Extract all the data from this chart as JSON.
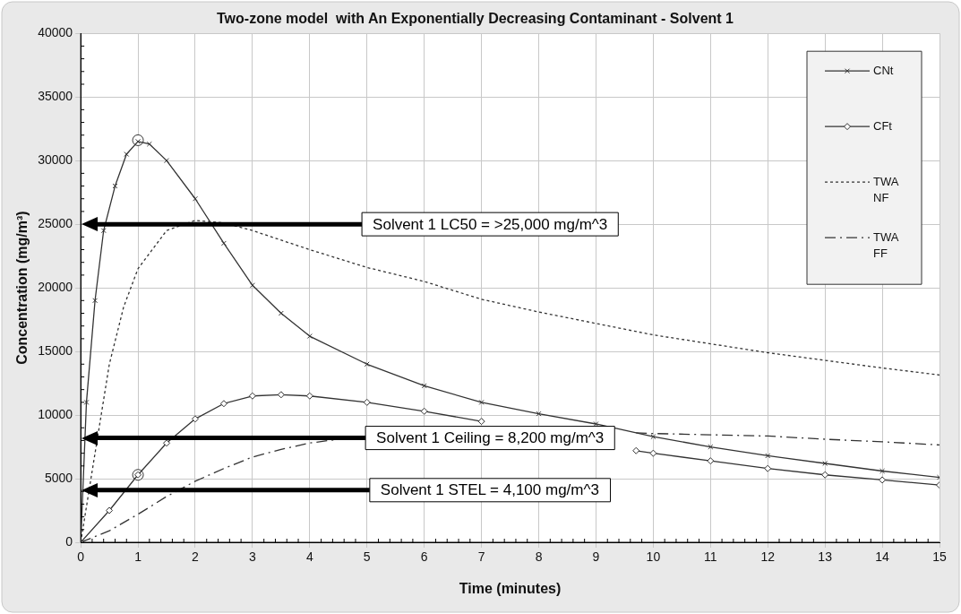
{
  "chart_data": {
    "type": "line",
    "title": "Two-zone model  with An Exponentially Decreasing Contaminant - Solvent 1",
    "xlabel": "Time (minutes)",
    "ylabel": "Concentration (mg/m³)",
    "xlim": [
      0,
      15
    ],
    "xticks": [
      0,
      1,
      2,
      3,
      4,
      5,
      6,
      7,
      8,
      9,
      10,
      11,
      12,
      13,
      14,
      15
    ],
    "ylim": [
      0,
      40000
    ],
    "yticks": [
      0,
      5000,
      10000,
      15000,
      20000,
      25000,
      30000,
      35000,
      40000
    ],
    "grid": true,
    "legend": "top right",
    "series": [
      {
        "name": "CNt",
        "color": "#333333",
        "marker": "cross",
        "line_style": "solid",
        "x": [
          0,
          0.1,
          0.25,
          0.4,
          0.6,
          0.8,
          1,
          1.2,
          1.5,
          2,
          2.5,
          3,
          3.5,
          4,
          5,
          6,
          7,
          8,
          9,
          10,
          11,
          12,
          13,
          14,
          15
        ],
        "values": [
          0,
          11000,
          19000,
          24500,
          28000,
          30500,
          31500,
          31300,
          30000,
          27000,
          23500,
          20200,
          18000,
          16200,
          14000,
          12300,
          11000,
          10100,
          9300,
          8300,
          7500,
          6800,
          6200,
          5600,
          5100
        ]
      },
      {
        "name": "CFt",
        "color": "#333333",
        "marker": "diamond",
        "line_style": "solid",
        "x": [
          0,
          0.5,
          1,
          1.5,
          2,
          2.5,
          3,
          3.5,
          4,
          5,
          6,
          7,
          8,
          9,
          9.7,
          10,
          11,
          12,
          13,
          14,
          15
        ],
        "values": [
          0,
          2500,
          5300,
          7800,
          9700,
          10900,
          11500,
          11600,
          11500,
          11000,
          10300,
          9500,
          null,
          null,
          7200,
          7000,
          6400,
          5800,
          5300,
          4900,
          4500
        ]
      },
      {
        "name": "TWA NF",
        "color": "#333333",
        "marker": "none",
        "line_style": "dotted",
        "x": [
          0,
          0.25,
          0.5,
          0.75,
          1,
          1.5,
          2,
          2.5,
          3,
          4,
          5,
          6,
          7,
          8,
          9,
          10,
          11,
          12,
          13,
          14,
          15
        ],
        "values": [
          0,
          7000,
          14000,
          18500,
          21500,
          24500,
          25300,
          25100,
          24500,
          23000,
          21600,
          20500,
          19100,
          18100,
          17200,
          16300,
          15600,
          14900,
          14300,
          13700,
          13150
        ]
      },
      {
        "name": "TWA FF",
        "color": "#333333",
        "marker": "none",
        "line_style": "dashed",
        "x": [
          0,
          0.5,
          1,
          1.5,
          2,
          2.5,
          3,
          3.5,
          4,
          4.5,
          5,
          6,
          7,
          8,
          9,
          9.7,
          10,
          11,
          12,
          13,
          14,
          15
        ],
        "values": [
          0,
          900,
          2200,
          3600,
          4800,
          5800,
          6700,
          7300,
          7800,
          8100,
          null,
          null,
          null,
          null,
          null,
          8600,
          8550,
          8450,
          8350,
          8100,
          7900,
          7650
        ]
      },
      {
        "type": "scatter",
        "color": "#333333",
        "marker": "circle",
        "x": [
          1,
          1
        ],
        "values": [
          31600,
          5300
        ]
      }
    ],
    "ref_lines": [
      {
        "axis": "y",
        "value": 25000,
        "label": "Solvent 1 LC50 = >25,000 mg/m^3"
      },
      {
        "axis": "y",
        "value": 8200,
        "label": "Solvent 1 Ceiling = 8,200 mg/m^3"
      },
      {
        "axis": "y",
        "value": 4100,
        "label": "Solvent 1 STEL = 4,100 mg/m^3"
      }
    ]
  }
}
